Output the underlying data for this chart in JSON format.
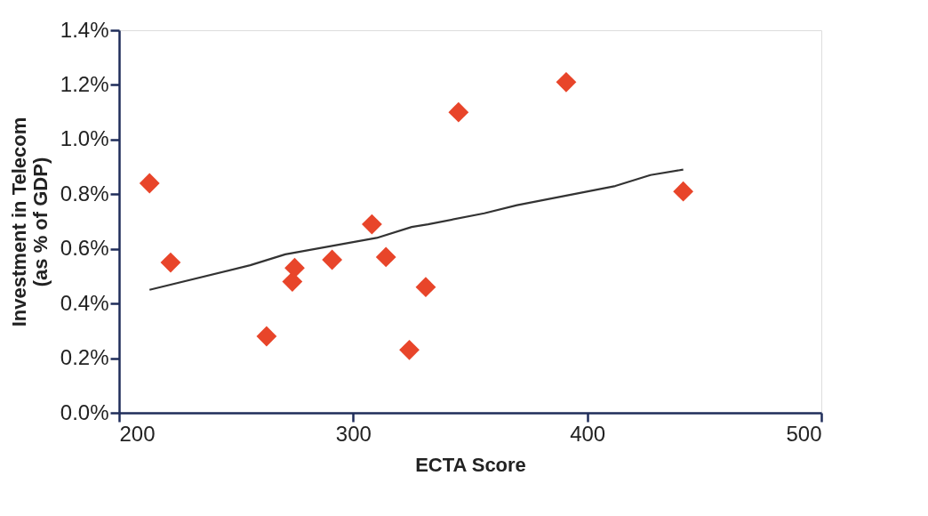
{
  "chart_data": {
    "type": "scatter",
    "xlabel": "ECTA Score",
    "ylabel": "Investment in Telecom\n(as % of GDP)",
    "xlim": [
      200,
      500
    ],
    "xticks": [
      200,
      300,
      400,
      500
    ],
    "ylim": [
      0,
      1.4
    ],
    "yticks": [
      {
        "value": 0,
        "label": "0.0%"
      },
      {
        "value": 0.2,
        "label": "0.2%"
      },
      {
        "value": 0.4,
        "label": "0.4%"
      },
      {
        "value": 0.6,
        "label": "0.6%"
      },
      {
        "value": 0.8,
        "label": "0.8%"
      },
      {
        "value": 1.0,
        "label": "1.0%"
      },
      {
        "value": 1.2,
        "label": "1.2%"
      },
      {
        "value": 1.4,
        "label": "1.4%"
      }
    ],
    "grid": false,
    "marker": "diamond",
    "series": [
      {
        "color": "#e8452a",
        "x": [
          213,
          222,
          263,
          274,
          275,
          291,
          308,
          314,
          324,
          331,
          345,
          391,
          441
        ],
        "values": [
          0.84,
          0.55,
          0.28,
          0.48,
          0.53,
          0.56,
          0.69,
          0.57,
          0.23,
          0.46,
          1.1,
          1.21,
          0.81
        ]
      },
      {
        "type": "line",
        "marker": "none",
        "color": "#333333",
        "x": [
          213,
          256,
          271,
          310,
          325,
          332,
          356,
          370,
          412,
          427,
          441
        ],
        "values": [
          0.45,
          0.54,
          0.58,
          0.64,
          0.68,
          0.69,
          0.73,
          0.76,
          0.83,
          0.87,
          0.89
        ]
      }
    ]
  }
}
